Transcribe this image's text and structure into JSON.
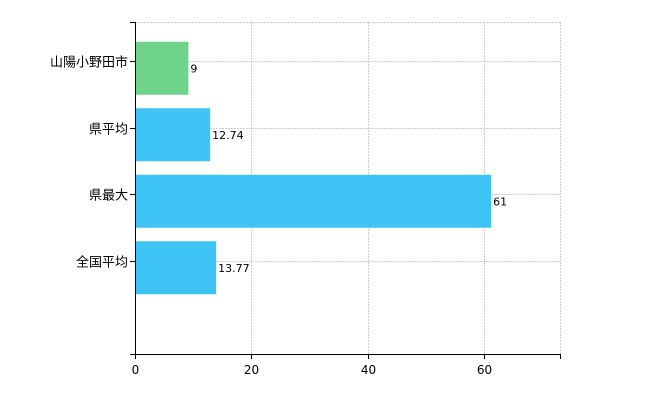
{
  "chart_data": {
    "type": "bar",
    "orientation": "horizontal",
    "categories": [
      "山陽小野田市",
      "県平均",
      "県最大",
      "全国平均"
    ],
    "values": [
      9,
      12.74,
      61,
      13.77
    ],
    "value_labels": [
      "9",
      "12.74",
      "61",
      "13.77"
    ],
    "colors": [
      "#6dd48a",
      "#3ec3f5",
      "#3ec3f5",
      "#3ec3f5"
    ],
    "xlim": [
      0,
      73
    ],
    "x_ticks": [
      0,
      20,
      40,
      60
    ],
    "x_tick_labels": [
      "0",
      "20",
      "40",
      "60"
    ],
    "grid": true,
    "legend": "none"
  }
}
